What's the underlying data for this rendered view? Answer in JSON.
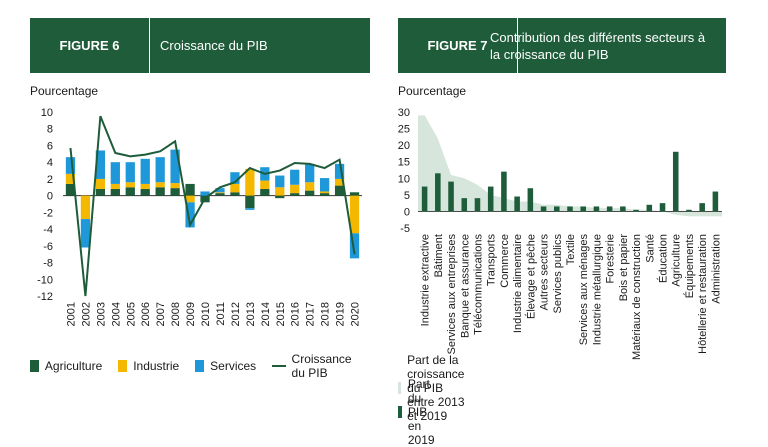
{
  "fig6": {
    "label": "FIGURE 6",
    "title": "Croissance du PIB",
    "ylabel": "Pourcentage",
    "legend": {
      "agriculture": "Agriculture",
      "industry": "Industrie",
      "services": "Services",
      "growth": "Croissance du PIB"
    }
  },
  "fig7": {
    "label": "FIGURE 7",
    "title": "Contribution des différents secteurs à la croissance du PIB",
    "ylabel": "Pourcentage",
    "legend": {
      "area": "Part de la croissance du PIB entre 2013 et 2019",
      "bars": "Part du PIB en 2019"
    }
  },
  "colors": {
    "agriculture": "#1e5c3a",
    "industry": "#f5b800",
    "services": "#1e98d8",
    "growth": "#1e5c3a",
    "area": "#d6e6dc",
    "bars": "#1e5c3a",
    "header": "#1e5c3a"
  },
  "chart_data": [
    {
      "type": "bar",
      "stacked": true,
      "categories": [
        "2001",
        "2002",
        "2003",
        "2004",
        "2005",
        "2006",
        "2007",
        "2008",
        "2009",
        "2010",
        "2011",
        "2012",
        "2013",
        "2014",
        "2015",
        "2016",
        "2017",
        "2018",
        "2019",
        "2020"
      ],
      "series": [
        {
          "name": "Agriculture",
          "values": [
            1.4,
            0.0,
            0.8,
            0.8,
            1.0,
            0.8,
            1.0,
            0.9,
            1.4,
            -0.8,
            0.3,
            0.4,
            -1.5,
            0.8,
            -0.3,
            0.3,
            0.6,
            0.3,
            1.2,
            0.4
          ]
        },
        {
          "name": "Industrie",
          "values": [
            1.2,
            -2.8,
            1.2,
            0.6,
            0.6,
            0.6,
            0.6,
            0.6,
            -0.8,
            0.0,
            0.1,
            1.0,
            3.2,
            1.0,
            1.0,
            1.0,
            1.0,
            0.2,
            0.8,
            -4.5
          ]
        },
        {
          "name": "Services",
          "values": [
            2.0,
            -3.4,
            3.4,
            2.6,
            2.4,
            3.0,
            3.0,
            4.0,
            -3.0,
            0.5,
            0.5,
            1.4,
            -0.2,
            1.6,
            1.4,
            1.8,
            2.2,
            1.6,
            1.8,
            -3.0
          ]
        }
      ],
      "line": {
        "name": "Croissance du PIB",
        "values": [
          5.7,
          -12.0,
          9.5,
          5.1,
          4.7,
          4.9,
          5.3,
          6.5,
          -3.5,
          -0.3,
          1.0,
          1.6,
          3.3,
          2.6,
          3.0,
          3.9,
          3.8,
          3.3,
          4.3,
          -7.0
        ]
      },
      "ylim": [
        -12,
        10
      ],
      "yticks": [
        -12,
        -10,
        -8,
        -6,
        -4,
        -2,
        0,
        2,
        4,
        6,
        8,
        10
      ],
      "ylabel": "Pourcentage"
    },
    {
      "type": "bar",
      "categories": [
        "Industrie extractive",
        "Bâtiment",
        "Services aux entreprises",
        "Banque et assurance",
        "Télécommunications",
        "Transports",
        "Commerce",
        "Industrie alimentaire",
        "Élevage et pêche",
        "Autres secteurs",
        "Services publics",
        "Textile",
        "Services aux ménages",
        "Industrie métallurgique",
        "Foresterie",
        "Bois et papier",
        "Matériaux de construction",
        "Santé",
        "Éducation",
        "Agriculture",
        "Équipements",
        "Hôtellerie et restauration",
        "Administration"
      ],
      "series": [
        {
          "name": "Part de la croissance du PIB entre 2013 et 2019",
          "type": "area",
          "values": [
            29,
            22,
            11,
            10,
            8,
            5,
            4,
            3,
            3,
            2,
            2,
            1.5,
            1.5,
            1,
            1,
            1,
            0.5,
            0.5,
            0,
            -1,
            -1.5,
            -1.5,
            -1.5
          ]
        },
        {
          "name": "Part du PIB en 2019",
          "values": [
            7.5,
            11.5,
            9.0,
            4.0,
            4.0,
            7.5,
            12.0,
            4.5,
            7.0,
            1.5,
            1.5,
            1.5,
            1.5,
            1.5,
            1.5,
            1.5,
            0.5,
            2.0,
            2.5,
            18.0,
            0.5,
            2.5,
            6.0
          ]
        }
      ],
      "ylim": [
        -5,
        30
      ],
      "yticks": [
        -5,
        0,
        5,
        10,
        15,
        20,
        25,
        30
      ],
      "ylabel": "Pourcentage"
    }
  ]
}
